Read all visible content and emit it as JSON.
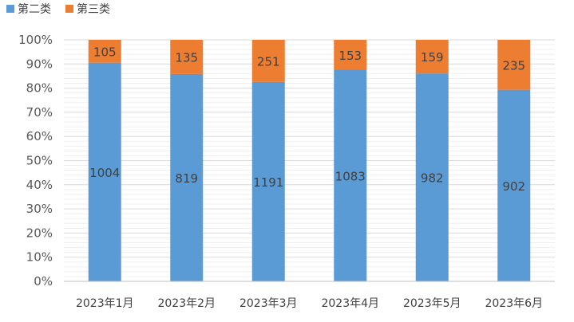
{
  "chart_data": {
    "type": "bar",
    "stacked": "percent",
    "categories": [
      "2023年1月",
      "2023年2月",
      "2023年3月",
      "2023年4月",
      "2023年5月",
      "2023年6月"
    ],
    "series": [
      {
        "name": "第二类",
        "color": "#5B9BD5",
        "values": [
          1004,
          819,
          1191,
          1083,
          982,
          902
        ]
      },
      {
        "name": "第三类",
        "color": "#ED7D31",
        "values": [
          105,
          135,
          251,
          153,
          159,
          235
        ]
      }
    ],
    "y_ticks": [
      "0%",
      "10%",
      "20%",
      "30%",
      "40%",
      "50%",
      "60%",
      "70%",
      "80%",
      "90%",
      "100%"
    ],
    "ylim": [
      0,
      100
    ],
    "grid": true,
    "legend": "top-left"
  }
}
